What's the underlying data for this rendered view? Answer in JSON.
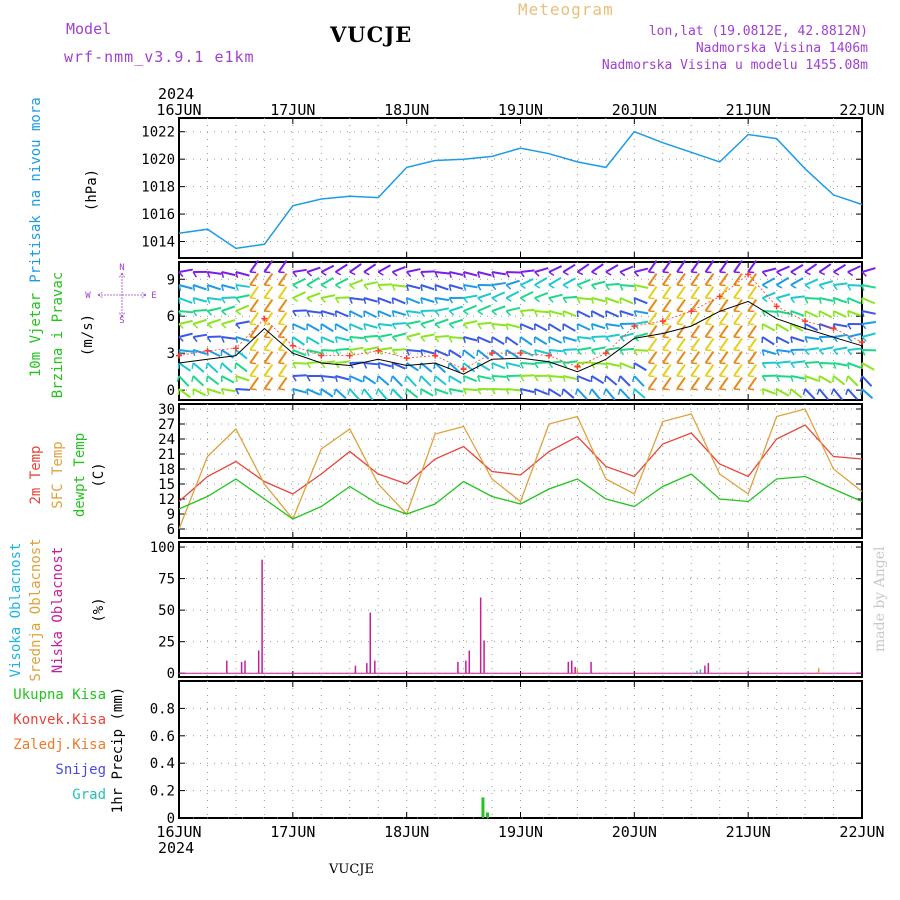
{
  "header": {
    "model_label": "Model",
    "model_name": "wrf-nmm_v3.9.1 e1km",
    "station": "VUCJE",
    "product": "Meteogram",
    "coords": "lon,lat (19.0812E, 42.8812N)",
    "elevation": "Nadmorska Visina 1406m",
    "model_elevation": "Nadmorska Visina u modelu 1455.08m",
    "footer_station": "VUCJE",
    "credit": "made by Angel"
  },
  "colors": {
    "pressure": "#1e9be6",
    "temp2m": "#e8443a",
    "sfc": "#e0a13c",
    "dewpoint": "#22c41e",
    "wind_black": "#000000",
    "wind_red": "#ff3b2e",
    "high_cloud": "#1fb3e6",
    "mid_cloud": "#e0a13c",
    "low_cloud": "#c41e9a",
    "total_precip": "#22c41e",
    "convective": "#e8443a",
    "freezing": "#f07a2a",
    "snow": "#4a4ae0",
    "hail": "#22c4b0",
    "title_purple": "#a040d0"
  },
  "chart_data": [
    {
      "type": "line",
      "panel": "pressure",
      "label_left": "Pritisak na nivou mora",
      "ylabel": "(hPa)",
      "ylim": [
        1012.8,
        1023.0
      ],
      "yticks": [
        1014,
        1016,
        1018,
        1020,
        1022
      ],
      "x_year_label": "2024",
      "xticks": [
        "16JUN",
        "17JUN",
        "18JUN",
        "19JUN",
        "20JUN",
        "21JUN",
        "22JUN"
      ],
      "x_days": [
        0,
        0.25,
        0.5,
        0.75,
        1,
        1.25,
        1.5,
        1.75,
        2,
        2.25,
        2.5,
        2.75,
        3,
        3.25,
        3.5,
        3.75,
        4,
        4.25,
        4.5,
        4.75,
        5,
        5.25,
        5.5,
        5.75,
        6
      ],
      "series": [
        {
          "values": [
            1014.6,
            1014.9,
            1013.5,
            1013.8,
            1016.6,
            1017.1,
            1017.3,
            1017.2,
            1019.4,
            1019.9,
            1020.0,
            1020.2,
            1020.8,
            1020.4,
            1019.8,
            1019.4,
            1022.0,
            1021.2,
            1020.5,
            1019.8,
            1021.8,
            1021.5,
            1019.3,
            1017.4,
            1016.7
          ]
        }
      ]
    },
    {
      "type": "line",
      "panel": "wind",
      "label_left_1": "10m Vjetar",
      "label_left_2": "Brzina i Pravac",
      "ylabel": "(m/s)",
      "compass": [
        "N",
        "S",
        "W",
        "E"
      ],
      "ylim": [
        -0.8,
        10.4
      ],
      "yticks": [
        0,
        3,
        6,
        9
      ],
      "x_days": [
        0,
        0.25,
        0.5,
        0.75,
        1,
        1.25,
        1.5,
        1.75,
        2,
        2.25,
        2.5,
        2.75,
        3,
        3.25,
        3.5,
        3.75,
        4,
        4.25,
        4.5,
        4.75,
        5,
        5.25,
        5.5,
        5.75,
        6
      ],
      "series": [
        {
          "name": "speed",
          "values": [
            2.2,
            2.5,
            2.8,
            5.0,
            3.0,
            2.2,
            2.0,
            2.5,
            2.0,
            2.2,
            1.3,
            2.5,
            2.6,
            2.3,
            1.5,
            2.5,
            4.2,
            4.6,
            5.2,
            6.4,
            7.2,
            5.8,
            5.0,
            4.3,
            3.6
          ]
        },
        {
          "name": "gust",
          "values": [
            2.8,
            3.2,
            3.4,
            5.8,
            3.6,
            2.8,
            2.8,
            3.2,
            2.6,
            2.8,
            1.7,
            3.0,
            3.0,
            2.8,
            1.9,
            3.0,
            5.2,
            5.6,
            6.4,
            7.6,
            9.4,
            6.8,
            5.6,
            5.0,
            3.9
          ]
        }
      ]
    },
    {
      "type": "line",
      "panel": "temperature",
      "label_left_1": "2m Temp",
      "label_left_2": "SFC Temp",
      "label_left_3": "dewpt Temp",
      "ylabel": "(C)",
      "ylim": [
        4.2,
        31.0
      ],
      "yticks": [
        6,
        9,
        12,
        15,
        18,
        21,
        24,
        27,
        30
      ],
      "x_days": [
        0,
        0.25,
        0.5,
        0.75,
        1,
        1.25,
        1.5,
        1.75,
        2,
        2.25,
        2.5,
        2.75,
        3,
        3.25,
        3.5,
        3.75,
        4,
        4.25,
        4.5,
        4.75,
        5,
        5.25,
        5.5,
        5.75,
        6
      ],
      "series": [
        {
          "name": "2m Temp",
          "values": [
            11.5,
            16.5,
            19.5,
            15.5,
            13.0,
            17.0,
            21.5,
            17.0,
            15.0,
            20.0,
            22.5,
            17.5,
            16.8,
            21.5,
            24.5,
            18.5,
            16.5,
            23.0,
            25.2,
            19.0,
            16.5,
            24.0,
            26.8,
            20.5,
            20.0
          ]
        },
        {
          "name": "SFC Temp",
          "values": [
            6.0,
            20.5,
            26.0,
            15.0,
            8.0,
            22.0,
            26.0,
            15.0,
            9.0,
            25.0,
            26.5,
            16.0,
            11.5,
            27.0,
            28.5,
            16.0,
            13.0,
            27.5,
            29.0,
            17.0,
            13.0,
            28.5,
            30.0,
            18.0,
            13.5
          ]
        },
        {
          "name": "dewpt Temp",
          "values": [
            10.0,
            12.5,
            16.0,
            12.0,
            8.0,
            10.5,
            14.5,
            11.0,
            9.0,
            11.0,
            15.5,
            12.5,
            11.0,
            14.0,
            16.0,
            12.0,
            10.5,
            14.5,
            17.0,
            12.0,
            11.5,
            16.0,
            16.5,
            14.0,
            11.5
          ]
        }
      ]
    },
    {
      "type": "bar",
      "panel": "clouds",
      "label_left_1": "Visoka Oblacnost",
      "label_left_2": "Srednja Oblacnost",
      "label_left_3": "Niska Oblacnost",
      "ylabel": "(%)",
      "ylim": [
        -3,
        104
      ],
      "yticks": [
        0,
        25,
        50,
        75,
        100
      ],
      "series": [
        {
          "name": "Niska Oblacnost",
          "x": [
            0.42,
            0.55,
            0.58,
            0.7,
            0.73,
            1.55,
            1.65,
            1.68,
            1.72,
            2.45,
            2.52,
            2.55,
            2.65,
            2.68,
            3.42,
            3.45,
            3.48,
            3.62,
            4.62,
            4.65
          ],
          "values": [
            10,
            9,
            10,
            18,
            90,
            6,
            8,
            48,
            10,
            9,
            10,
            18,
            60,
            26,
            9,
            10,
            5,
            9,
            6,
            8
          ]
        },
        {
          "name": "Srednja Oblacnost",
          "x": [
            3.5,
            5.62
          ],
          "values": [
            3,
            4
          ]
        },
        {
          "name": "Visoka Oblacnost",
          "x": [
            4.55,
            4.58
          ],
          "values": [
            2,
            3
          ]
        }
      ]
    },
    {
      "type": "bar",
      "panel": "precipitation",
      "label_left_1": "Ukupna Kisa",
      "label_left_2": "Konvek.Kisa",
      "label_left_3": "Zaledj.Kisa",
      "label_left_4": "Snijeg",
      "label_left_5": "Grad",
      "ylabel": "1hr Precip (mm)",
      "ylim": [
        0,
        1.0
      ],
      "yticks": [
        0,
        0.2,
        0.4,
        0.6,
        0.8
      ],
      "x_year_label": "2024",
      "xticks": [
        "16JUN",
        "17JUN",
        "18JUN",
        "19JUN",
        "20JUN",
        "21JUN",
        "22JUN"
      ],
      "series": [
        {
          "name": "Ukupna Kisa",
          "x": [
            2.67,
            2.71
          ],
          "values": [
            0.15,
            0.04
          ]
        }
      ]
    }
  ]
}
